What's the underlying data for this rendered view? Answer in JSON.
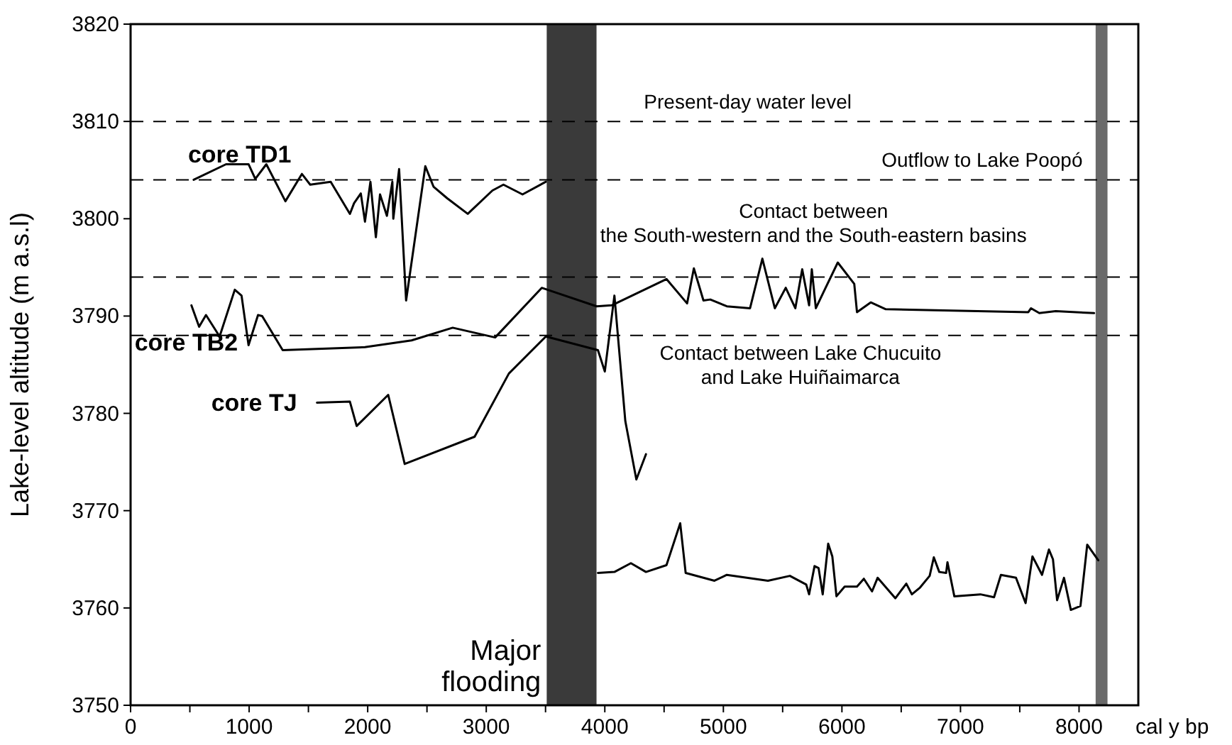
{
  "chart_data": {
    "type": "line",
    "xlabel": "cal y bp",
    "ylabel": "Lake-level altitude (m a.s.l)",
    "xlim": [
      0,
      8500
    ],
    "ylim": [
      3750,
      3820
    ],
    "xticks": [
      0,
      {
        "value": 500,
        "label": null
      },
      1000,
      {
        "value": 1500,
        "label": null
      },
      2000,
      {
        "value": 2500,
        "label": null
      },
      3000,
      {
        "value": 3500,
        "label": null
      },
      4000,
      {
        "value": 4500,
        "label": null
      },
      5000,
      {
        "value": 5500,
        "label": null
      },
      6000,
      {
        "value": 6500,
        "label": null
      },
      7000,
      {
        "value": 7500,
        "label": null
      },
      8000
    ],
    "yticks": [
      3750,
      3760,
      3770,
      3780,
      3790,
      3800,
      3810,
      3820
    ],
    "grid": false,
    "marker": "none",
    "line_style": "solid",
    "series": [
      {
        "name": "core TD1",
        "color": "#000000",
        "x": [
          532,
          805,
          995,
          1052,
          1145,
          1306,
          1445,
          1515,
          1688,
          1850,
          1885,
          1942,
          1977,
          2023,
          2069,
          2104,
          2162,
          2208,
          2216,
          2265,
          2324,
          2486,
          2555,
          2671,
          2844,
          3052,
          3145,
          3306,
          3503
        ],
        "values": [
          3804.0,
          3805.6,
          3805.6,
          3804.1,
          3805.6,
          3801.8,
          3804.6,
          3803.5,
          3803.8,
          3800.5,
          3801.6,
          3802.6,
          3799.7,
          3803.8,
          3798.1,
          3802.5,
          3800.3,
          3803.8,
          3800.0,
          3805.1,
          3791.6,
          3805.4,
          3803.3,
          3802.1,
          3800.5,
          3802.9,
          3803.5,
          3802.5,
          3803.8
        ]
      },
      {
        "name": "core TB2",
        "color": "#000000",
        "x": [
          513,
          578,
          636,
          751,
          879,
          936,
          995,
          1075,
          1110,
          1283,
          1977,
          2370,
          2717,
          3075,
          3468,
          3931,
          4058,
          4520,
          4694,
          4751,
          4832,
          4890,
          5029,
          5225,
          5329,
          5434,
          5526,
          5607,
          5665,
          5723,
          5746,
          5780,
          5850,
          5965,
          6104,
          6127,
          6243,
          6370,
          7572,
          7595,
          7665,
          7803,
          8127
        ],
        "values": [
          3791.1,
          3788.9,
          3790.1,
          3787.9,
          3792.7,
          3792.1,
          3787.0,
          3790.1,
          3790.0,
          3786.5,
          3786.8,
          3787.5,
          3788.8,
          3787.8,
          3792.9,
          3791.0,
          3791.1,
          3793.8,
          3791.3,
          3794.9,
          3791.6,
          3791.7,
          3791.0,
          3790.8,
          3795.9,
          3790.8,
          3792.9,
          3790.8,
          3794.8,
          3791.1,
          3794.8,
          3790.8,
          3792.6,
          3795.5,
          3793.3,
          3790.4,
          3791.4,
          3790.7,
          3790.4,
          3790.8,
          3790.3,
          3790.5,
          3790.3
        ]
      },
      {
        "name": "core TJ",
        "color": "#000000",
        "x": [
          1572,
          1850,
          1907,
          2173,
          2312,
          2902,
          3191,
          3503,
          3942,
          4000,
          4081,
          4173,
          4266,
          4347
        ],
        "values": [
          3781.1,
          3781.2,
          3778.7,
          3781.9,
          3774.8,
          3777.6,
          3784.1,
          3787.9,
          3786.5,
          3784.3,
          3792.1,
          3779.2,
          3773.2,
          3775.8
        ]
      },
      {
        "color": "#000000",
        "x": [
          3942,
          4081,
          4220,
          4347,
          4520,
          4636,
          4682,
          4925,
          5029,
          5376,
          5561,
          5699,
          5723,
          5769,
          5803,
          5838,
          5884,
          5919,
          5954,
          6023,
          6127,
          6185,
          6254,
          6301,
          6451,
          6543,
          6590,
          6659,
          6740,
          6775,
          6821,
          6879,
          6890,
          6948,
          7168,
          7283,
          7341,
          7468,
          7549,
          7607,
          7688,
          7746,
          7780,
          7815,
          7873,
          7931,
          8012,
          8069,
          8162
        ],
        "values": [
          3763.6,
          3763.7,
          3764.6,
          3763.7,
          3764.4,
          3768.7,
          3763.6,
          3762.8,
          3763.4,
          3762.8,
          3763.3,
          3762.4,
          3761.4,
          3764.3,
          3764.1,
          3761.4,
          3766.6,
          3765.3,
          3761.2,
          3762.2,
          3762.2,
          3763.0,
          3761.7,
          3763.1,
          3761.0,
          3762.5,
          3761.4,
          3762.1,
          3763.3,
          3765.2,
          3763.7,
          3763.6,
          3764.7,
          3761.2,
          3761.4,
          3761.1,
          3763.4,
          3763.1,
          3760.5,
          3765.3,
          3763.4,
          3766.0,
          3765.0,
          3760.8,
          3763.1,
          3759.8,
          3760.2,
          3766.5,
          3764.9
        ]
      }
    ],
    "ref_lines": [
      {
        "axis": "y",
        "value": 3810,
        "label": "Present-day water level",
        "line_style": "dashed",
        "color": "#000000"
      },
      {
        "axis": "y",
        "value": 3804,
        "label": "Outflow to Lake Poopó",
        "line_style": "dashed",
        "color": "#000000"
      },
      {
        "axis": "y",
        "value": 3794,
        "label": "Contact between\nthe South-western and the South-eastern basins",
        "line_style": "dashed",
        "color": "#000000"
      },
      {
        "axis": "y",
        "value": 3788,
        "label": "Contact between Lake Chucuito\nand Lake Huiñaimarca",
        "line_style": "dashed",
        "color": "#000000"
      }
    ],
    "bands": [
      {
        "axis": "x",
        "from": 3510,
        "to": 3930,
        "label": "Major\nflooding",
        "color": "#3a3a3a"
      },
      {
        "axis": "x",
        "from": 8140,
        "to": 8240,
        "color": "#6a6a6a"
      }
    ]
  }
}
